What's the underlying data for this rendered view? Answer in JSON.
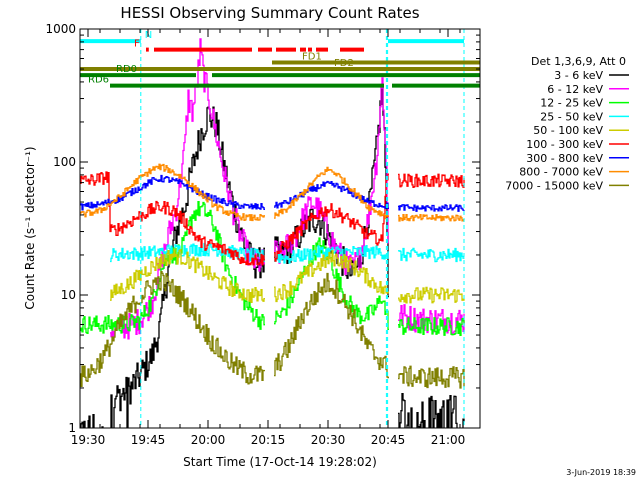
{
  "chart_data": {
    "type": "line",
    "title": "HESSI Observing Summary Count Rates",
    "xlabel": "Start Time (17-Oct-14 19:28:02)",
    "ylabel": "Count Rate (s⁻¹ detector⁻¹)",
    "footer": "3-Jun-2019 18:39",
    "x_units": "minutes after 19:28:02",
    "xlim": [
      0,
      100
    ],
    "ylim": [
      1,
      1000
    ],
    "yscale": "log",
    "grid": false,
    "legend_position": "right",
    "legend_header": "Det 1,3,6,9, Att 0",
    "x_ticks": [
      {
        "label": "19:30",
        "value": 2.0
      },
      {
        "label": "19:45",
        "value": 17.0
      },
      {
        "label": "20:00",
        "value": 32.0
      },
      {
        "label": "20:15",
        "value": 47.0
      },
      {
        "label": "20:30",
        "value": 62.0
      },
      {
        "label": "20:45",
        "value": 77.0
      },
      {
        "label": "21:00",
        "value": 92.0
      }
    ],
    "y_ticks": [
      {
        "label": "1",
        "value": 1
      },
      {
        "label": "10",
        "value": 10
      },
      {
        "label": "100",
        "value": 100
      },
      {
        "label": "1000",
        "value": 1000
      }
    ],
    "vertical_markers": [
      {
        "x": 15.2,
        "color": "#00ffff"
      },
      {
        "x": 76.6,
        "color": "#00ffff"
      },
      {
        "x": 76.9,
        "color": "#00ffff"
      },
      {
        "x": 96.0,
        "color": "#00ffff"
      }
    ],
    "flag_bars": [
      {
        "label": "N",
        "color": "#00ffff",
        "y": 810,
        "segments": [
          [
            0,
            15.2
          ],
          [
            77,
            96
          ]
        ],
        "label_x": 16.2
      },
      {
        "label": "F",
        "color": "#ff0000",
        "y": 700,
        "segments": [
          [
            16.5,
            17.2
          ],
          [
            18.5,
            43
          ],
          [
            44.5,
            48
          ],
          [
            49,
            54
          ],
          [
            55,
            56.5
          ],
          [
            57,
            58
          ],
          [
            59,
            62
          ],
          [
            65,
            71
          ]
        ],
        "label_x": 13.5
      },
      {
        "label": "FD1",
        "color": "#808000",
        "y": 560,
        "segments": [
          [
            48,
            100
          ]
        ],
        "label_x": 55.5
      },
      {
        "label": "FD2",
        "color": "#808000",
        "y": 500,
        "segments": [
          [
            0,
            100
          ]
        ],
        "label_x": 63.5
      },
      {
        "label": "RD0",
        "color": "#008000",
        "y": 450,
        "segments": [
          [
            0,
            29
          ],
          [
            33,
            100
          ]
        ],
        "label_x": 9
      },
      {
        "label": "RD6",
        "color": "#008000",
        "y": 375,
        "segments": [
          [
            7.5,
            76
          ],
          [
            78,
            100
          ]
        ],
        "label_x": 2
      }
    ],
    "gap_ranges": [
      [
        46,
        48.5
      ],
      [
        77,
        79.5
      ]
    ],
    "series": [
      {
        "name": "3 - 6 keV",
        "color": "#000000",
        "noise": 0.12,
        "drop_below": true,
        "x": [
          0,
          7,
          7.5,
          12,
          15,
          18,
          20,
          22,
          24,
          26,
          28,
          30,
          32,
          34,
          36,
          38,
          40,
          42,
          44,
          46,
          48,
          50,
          52,
          54,
          56,
          58,
          60,
          62,
          64,
          66,
          68,
          70,
          72,
          74,
          75.5,
          76.5,
          77.5,
          80,
          85,
          90,
          96
        ],
        "y": [
          1.0,
          1.0,
          1.6,
          1.9,
          2.5,
          3.5,
          6.0,
          16.0,
          30.0,
          45.0,
          90.0,
          160.0,
          230.0,
          190.0,
          90.0,
          50.0,
          30.0,
          20.0,
          17.0,
          18.0,
          22.0,
          20.0,
          22.0,
          26.0,
          32.0,
          38.0,
          36.0,
          28.0,
          22.0,
          17.0,
          14.0,
          18.0,
          40.0,
          120.0,
          350.0,
          60.0,
          2.4,
          1.4,
          1.3,
          1.4,
          1.3
        ]
      },
      {
        "name": "6 - 12 keV",
        "color": "#ff00ff",
        "noise": 0.1,
        "x": [
          7.5,
          12,
          15,
          18,
          20,
          22,
          24,
          26,
          27,
          28,
          29,
          30,
          31,
          32,
          34,
          36,
          38,
          40,
          42,
          44,
          46,
          48,
          50,
          52,
          54,
          56,
          58,
          60,
          62,
          64,
          66,
          68,
          70,
          72,
          74,
          75.5,
          76.5,
          77.5,
          80,
          85,
          90,
          96
        ],
        "y": [
          5.5,
          5.8,
          6.5,
          9.0,
          16.0,
          28.0,
          45.0,
          120.0,
          300.0,
          240.0,
          350.0,
          700.0,
          420.0,
          320.0,
          160.0,
          80.0,
          45.0,
          28.0,
          20.0,
          17.0,
          18.0,
          22.0,
          20.0,
          24.0,
          28.0,
          40.0,
          50.0,
          42.0,
          30.0,
          22.0,
          18.0,
          16.0,
          20.0,
          38.0,
          100.0,
          420.0,
          90.0,
          8.0,
          7.0,
          6.5,
          6.5,
          6.5
        ]
      },
      {
        "name": "12 - 25 keV",
        "color": "#00ff00",
        "noise": 0.07,
        "x": [
          0,
          7,
          7.5,
          12,
          15,
          18,
          20,
          22,
          24,
          26,
          28,
          30,
          32,
          34,
          36,
          38,
          40,
          42,
          44,
          46,
          48,
          50,
          52,
          54,
          56,
          58,
          60,
          62,
          64,
          66,
          68,
          70,
          72,
          74,
          75.5,
          76.5,
          77.5,
          80,
          85,
          90,
          96
        ],
        "y": [
          6.0,
          6.0,
          6.0,
          6.0,
          6.5,
          9.0,
          15.0,
          20.0,
          20.0,
          24.0,
          40.0,
          45.0,
          40.0,
          30.0,
          18.0,
          13.0,
          10.0,
          8.0,
          7.0,
          6.0,
          6.5,
          7.0,
          8.5,
          11.0,
          15.0,
          20.0,
          24.0,
          20.0,
          14.0,
          10.0,
          8.0,
          7.0,
          7.0,
          8.0,
          10.0,
          7.0,
          5.8,
          5.8,
          5.8,
          5.8,
          5.8
        ]
      },
      {
        "name": "25 - 50 keV",
        "color": "#00ffff",
        "noise": 0.05,
        "x": [
          7.5,
          12,
          15,
          18,
          20,
          22,
          26,
          30,
          34,
          38,
          42,
          46,
          48,
          52,
          56,
          60,
          62,
          64,
          68,
          72,
          75.5,
          76.5,
          77.5,
          80,
          85,
          90,
          96
        ],
        "y": [
          20.0,
          20.5,
          20.5,
          21.0,
          21.0,
          21.5,
          22.0,
          22.0,
          22.0,
          21.0,
          20.0,
          19.5,
          19.5,
          19.0,
          20.0,
          21.0,
          21.0,
          21.0,
          21.0,
          21.0,
          21.0,
          20.0,
          20.0,
          20.0,
          20.0,
          20.0,
          20.0
        ]
      },
      {
        "name": "50 - 100 keV",
        "color": "#cccc00",
        "noise": 0.06,
        "x": [
          7.5,
          12,
          16,
          20,
          23,
          26,
          30,
          34,
          38,
          42,
          46,
          48,
          52,
          56,
          60,
          63,
          66,
          70,
          74,
          75.5,
          76.5,
          77.5,
          80,
          85,
          90,
          96
        ],
        "y": [
          10.0,
          12.0,
          15.0,
          18.0,
          20.0,
          19.0,
          16.0,
          13.0,
          11.0,
          10.0,
          10.0,
          10.0,
          11.0,
          14.0,
          17.0,
          19.0,
          18.0,
          15.0,
          12.0,
          11.0,
          10.5,
          10.0,
          10.0,
          10.0,
          10.0,
          10.0
        ]
      },
      {
        "name": "100 - 300 keV",
        "color": "#ff0000",
        "noise": 0.05,
        "x": [
          0,
          3,
          5,
          7,
          7.5,
          10,
          14,
          18,
          20,
          22,
          24,
          26,
          28,
          30,
          32,
          34,
          36,
          38,
          40,
          42,
          44,
          46,
          48,
          52,
          56,
          60,
          62,
          64,
          68,
          72,
          74,
          75.5,
          76.5,
          77.5,
          80,
          85,
          90,
          96
        ],
        "y": [
          72.0,
          73.0,
          75.0,
          78.0,
          30.0,
          32.0,
          38.0,
          44.0,
          46.0,
          45.0,
          42.0,
          36.0,
          30.0,
          25.0,
          24.0,
          23.0,
          22.0,
          21.0,
          19.0,
          18.5,
          18.5,
          18.5,
          19.0,
          25.0,
          33.0,
          42.0,
          44.0,
          42.0,
          35.0,
          28.0,
          27.0,
          25.0,
          78.0,
          75.0,
          73.0,
          72.0,
          72.0,
          72.0
        ]
      },
      {
        "name": "300 - 800 keV",
        "color": "#0000ff",
        "noise": 0.025,
        "x": [
          0,
          5,
          10,
          14,
          18,
          20,
          22,
          26,
          30,
          34,
          38,
          42,
          46,
          48,
          52,
          56,
          60,
          62,
          64,
          68,
          72,
          76,
          78,
          84,
          90,
          96
        ],
        "y": [
          46.0,
          48.0,
          53.0,
          62.0,
          72.0,
          75.0,
          74.0,
          68.0,
          58.0,
          52.0,
          48.0,
          46.0,
          46.0,
          46.0,
          50.0,
          58.0,
          66.0,
          68.0,
          66.0,
          58.0,
          50.0,
          47.0,
          46.0,
          45.0,
          45.0,
          45.0
        ]
      },
      {
        "name": "800 - 7000 keV",
        "color": "#ff8c00",
        "noise": 0.025,
        "x": [
          0,
          5,
          10,
          14,
          18,
          20,
          22,
          26,
          30,
          34,
          38,
          42,
          46,
          48,
          52,
          56,
          60,
          62,
          64,
          68,
          72,
          76,
          78,
          84,
          90,
          96
        ],
        "y": [
          40.0,
          43.0,
          55.0,
          72.0,
          88.0,
          92.0,
          88.0,
          75.0,
          58.0,
          46.0,
          40.0,
          38.0,
          38.0,
          38.0,
          45.0,
          60.0,
          80.0,
          88.0,
          82.0,
          62.0,
          46.0,
          40.0,
          38.0,
          38.0,
          38.0,
          38.0
        ]
      },
      {
        "name": "7000 - 15000 keV",
        "color": "#808000",
        "noise": 0.08,
        "drop_below": true,
        "x": [
          0,
          3,
          6,
          10,
          14,
          18,
          20,
          22,
          26,
          30,
          34,
          38,
          42,
          46,
          48,
          52,
          56,
          60,
          62,
          64,
          68,
          72,
          76,
          78,
          84,
          90,
          96
        ],
        "y": [
          2.4,
          2.7,
          3.5,
          6.0,
          9.0,
          12.0,
          13.0,
          12.0,
          9.0,
          6.0,
          4.0,
          3.0,
          2.5,
          2.5,
          2.6,
          4.0,
          7.5,
          11.0,
          12.5,
          11.0,
          7.0,
          4.0,
          3.0,
          2.5,
          2.4,
          2.4,
          2.4
        ]
      }
    ]
  }
}
